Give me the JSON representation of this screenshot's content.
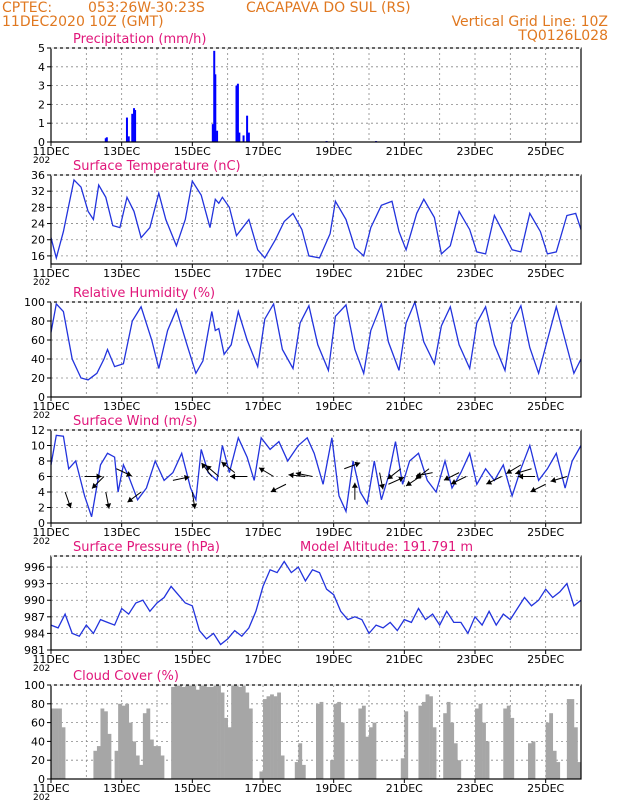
{
  "header": {
    "line1_left": "CPTEC:",
    "line1_coords": "053:26W-30:23S",
    "line1_station": "CACAPAVA DO SUL (RS)",
    "line2_date": "11DEC2020 10Z (GMT)",
    "line2_grid": "Vertical Grid Line: 10Z",
    "line3_code": "TQ0126L028",
    "header_color": "#e07820",
    "title_color": "#e0167a"
  },
  "x_ticks": [
    "11DEC",
    "13DEC",
    "15DEC",
    "17DEC",
    "19DEC",
    "21DEC",
    "23DEC",
    "25DEC"
  ],
  "year_fragment": "202",
  "x_range_days": [
    11,
    26
  ],
  "chart_data": [
    {
      "type": "bar",
      "title": "Precipitation (mm/h)",
      "ylim": [
        0,
        5
      ],
      "yticks": [
        "0",
        "1",
        "2",
        "3",
        "4",
        "5"
      ],
      "color": "#0000ff",
      "points": [
        {
          "x": 12.55,
          "y": 0.2
        },
        {
          "x": 12.58,
          "y": 0.25
        },
        {
          "x": 13.15,
          "y": 1.3
        },
        {
          "x": 13.2,
          "y": 0.3
        },
        {
          "x": 13.3,
          "y": 1.5
        },
        {
          "x": 13.35,
          "y": 1.8
        },
        {
          "x": 13.38,
          "y": 1.7
        },
        {
          "x": 15.58,
          "y": 0.95
        },
        {
          "x": 15.62,
          "y": 4.85
        },
        {
          "x": 15.65,
          "y": 3.6
        },
        {
          "x": 15.7,
          "y": 0.6
        },
        {
          "x": 16.25,
          "y": 3.0
        },
        {
          "x": 16.29,
          "y": 3.1
        },
        {
          "x": 16.33,
          "y": 0.5
        },
        {
          "x": 16.45,
          "y": 0.35
        },
        {
          "x": 16.55,
          "y": 1.4
        },
        {
          "x": 16.6,
          "y": 0.5
        },
        {
          "x": 18.8,
          "y": 0.05
        },
        {
          "x": 20.2,
          "y": 0.05
        }
      ]
    },
    {
      "type": "line",
      "title": "Surface Temperature (nC)",
      "ylim": [
        14,
        36
      ],
      "yticks": [
        "16",
        "20",
        "24",
        "28",
        "32",
        "36"
      ],
      "color": "#2233dd",
      "x": [
        11.0,
        11.15,
        11.35,
        11.65,
        11.85,
        12.05,
        12.2,
        12.35,
        12.55,
        12.75,
        12.95,
        13.15,
        13.35,
        13.55,
        13.8,
        14.05,
        14.25,
        14.55,
        14.8,
        15.0,
        15.25,
        15.5,
        15.65,
        15.75,
        15.85,
        16.05,
        16.25,
        16.6,
        16.85,
        17.05,
        17.35,
        17.6,
        17.85,
        18.1,
        18.3,
        18.6,
        18.9,
        19.05,
        19.35,
        19.6,
        19.85,
        20.05,
        20.35,
        20.65,
        20.85,
        21.05,
        21.35,
        21.55,
        21.85,
        22.05,
        22.3,
        22.55,
        22.85,
        23.05,
        23.3,
        23.55,
        23.85,
        24.05,
        24.3,
        24.55,
        24.85,
        25.05,
        25.3,
        25.6,
        25.85,
        26.0
      ],
      "y": [
        20.5,
        15.5,
        22,
        34.8,
        33,
        27,
        25,
        33.5,
        30.5,
        23.5,
        23,
        30.5,
        27,
        20.5,
        23,
        31.5,
        25,
        18.5,
        25,
        34.5,
        31,
        23,
        30,
        29,
        30.5,
        28,
        21,
        25,
        17.5,
        15.5,
        20,
        24.5,
        26.5,
        22.5,
        16,
        15.5,
        21.5,
        29.5,
        25,
        18,
        16,
        23,
        28.5,
        29.5,
        22,
        17.5,
        26.5,
        30,
        25.5,
        16.5,
        18.5,
        27,
        22.5,
        17,
        16.5,
        26,
        21,
        17.5,
        17,
        26.5,
        22,
        16.5,
        17,
        26,
        26.5,
        22.5
      ]
    },
    {
      "type": "line",
      "title": "Relative Humidity (%)",
      "ylim": [
        0,
        100
      ],
      "yticks": [
        "0",
        "20",
        "40",
        "60",
        "80",
        "100"
      ],
      "color": "#2233dd",
      "x": [
        11.0,
        11.15,
        11.35,
        11.6,
        11.85,
        12.05,
        12.3,
        12.5,
        12.6,
        12.8,
        13.05,
        13.3,
        13.55,
        13.85,
        14.05,
        14.3,
        14.55,
        14.85,
        15.1,
        15.3,
        15.55,
        15.65,
        15.75,
        15.9,
        16.1,
        16.3,
        16.55,
        16.85,
        17.05,
        17.3,
        17.55,
        17.85,
        18.05,
        18.3,
        18.55,
        18.85,
        19.05,
        19.35,
        19.6,
        19.85,
        20.05,
        20.35,
        20.55,
        20.85,
        21.05,
        21.3,
        21.55,
        21.85,
        22.05,
        22.3,
        22.55,
        22.85,
        23.05,
        23.3,
        23.55,
        23.85,
        24.05,
        24.3,
        24.55,
        24.8,
        25.05,
        25.3,
        25.55,
        25.8,
        26.0
      ],
      "y": [
        68,
        98,
        90,
        40,
        20,
        18,
        25,
        40,
        50,
        32,
        35,
        80,
        95,
        60,
        30,
        70,
        92,
        55,
        25,
        38,
        90,
        70,
        72,
        45,
        55,
        90,
        60,
        32,
        82,
        98,
        50,
        30,
        78,
        96,
        55,
        28,
        85,
        97,
        50,
        25,
        70,
        98,
        58,
        28,
        78,
        100,
        58,
        35,
        75,
        95,
        55,
        30,
        78,
        95,
        55,
        28,
        78,
        96,
        52,
        25,
        60,
        95,
        60,
        25,
        40
      ]
    },
    {
      "type": "line",
      "title": "Surface Wind (m/s)",
      "ylim": [
        0,
        12
      ],
      "yticks": [
        "0",
        "2",
        "4",
        "6",
        "8",
        "10",
        "12"
      ],
      "color": "#2233dd",
      "arrow_color": "#000000",
      "x": [
        11.0,
        11.15,
        11.35,
        11.5,
        11.7,
        11.95,
        12.15,
        12.4,
        12.6,
        12.8,
        12.9,
        13.05,
        13.2,
        13.45,
        13.7,
        13.95,
        14.2,
        14.45,
        14.7,
        14.95,
        15.1,
        15.25,
        15.45,
        15.7,
        15.85,
        16.05,
        16.3,
        16.55,
        16.75,
        16.95,
        17.2,
        17.45,
        17.7,
        18.0,
        18.25,
        18.45,
        18.7,
        18.95,
        19.15,
        19.35,
        19.55,
        19.75,
        19.95,
        20.15,
        20.35,
        20.55,
        20.75,
        20.95,
        21.15,
        21.4,
        21.65,
        21.9,
        22.15,
        22.35,
        22.6,
        22.85,
        23.05,
        23.3,
        23.55,
        23.8,
        24.05,
        24.3,
        24.55,
        24.8,
        25.05,
        25.3,
        25.55,
        25.75,
        26.0
      ],
      "y": [
        7.5,
        11.3,
        11.2,
        7,
        8,
        3.5,
        0.8,
        7.5,
        9,
        8.5,
        4,
        7.5,
        6,
        3,
        4.5,
        8,
        5.5,
        6.5,
        9,
        4.5,
        3,
        9.5,
        6.5,
        5.5,
        10,
        6.5,
        11,
        8.5,
        5.5,
        11,
        9.5,
        10.5,
        8,
        10,
        11,
        9,
        5,
        11,
        3.5,
        1.5,
        8,
        4,
        2.5,
        8,
        3,
        6,
        10.5,
        5,
        8,
        9,
        5.5,
        4,
        8,
        4.5,
        6.5,
        9,
        5,
        7,
        5.5,
        7.5,
        3.5,
        7,
        10,
        5.5,
        7,
        9,
        4.5,
        8,
        10
      ]
    },
    {
      "type": "line",
      "title": "Surface Pressure (hPa)",
      "subtitle": "Model Altitude: 191.791 m",
      "ylim": [
        981,
        998
      ],
      "yticks": [
        "981",
        "984",
        "987",
        "990",
        "993",
        "996"
      ],
      "color": "#2233dd",
      "x": [
        11.0,
        11.2,
        11.4,
        11.6,
        11.8,
        12.0,
        12.2,
        12.4,
        12.6,
        12.8,
        13.0,
        13.2,
        13.4,
        13.6,
        13.8,
        14.0,
        14.2,
        14.4,
        14.6,
        14.8,
        15.0,
        15.2,
        15.4,
        15.6,
        15.8,
        16.0,
        16.2,
        16.4,
        16.6,
        16.8,
        17.0,
        17.2,
        17.4,
        17.6,
        17.8,
        18.0,
        18.2,
        18.4,
        18.6,
        18.8,
        19.0,
        19.2,
        19.4,
        19.6,
        19.8,
        20.0,
        20.2,
        20.4,
        20.6,
        20.8,
        21.0,
        21.2,
        21.4,
        21.6,
        21.8,
        22.0,
        22.2,
        22.4,
        22.6,
        22.8,
        23.0,
        23.2,
        23.4,
        23.6,
        23.8,
        24.0,
        24.2,
        24.4,
        24.6,
        24.8,
        25.0,
        25.2,
        25.4,
        25.6,
        25.8,
        26.0
      ],
      "y": [
        985.5,
        985,
        987.5,
        984,
        983.5,
        985.5,
        984,
        986.5,
        986,
        985.5,
        988.5,
        987.5,
        989.5,
        990,
        988,
        989.5,
        990.5,
        992.5,
        991,
        989.5,
        989,
        984.5,
        983,
        984,
        982,
        983,
        984.5,
        983.5,
        985,
        988,
        992.5,
        995.5,
        995,
        997,
        995,
        996,
        993.5,
        995.5,
        995,
        992,
        991,
        988,
        986.5,
        987,
        986.5,
        984,
        985.5,
        985,
        986,
        984.5,
        986.5,
        986,
        988.5,
        986.5,
        987.5,
        985.5,
        988,
        986,
        986,
        984,
        987,
        985.5,
        988,
        985.5,
        987.5,
        986.5,
        988.5,
        990.5,
        989,
        990,
        992,
        990.5,
        991.5,
        993,
        989,
        990
      ]
    },
    {
      "type": "bar",
      "title": "Cloud Cover (%)",
      "ylim": [
        0,
        100
      ],
      "yticks": [
        "0",
        "20",
        "40",
        "60",
        "80",
        "100"
      ],
      "color": "#a6a6a6",
      "x": [
        11.0,
        11.1,
        11.2,
        11.3,
        11.4,
        11.5,
        11.6,
        11.7,
        11.8,
        11.9,
        12.0,
        12.1,
        12.2,
        12.3,
        12.4,
        12.5,
        12.6,
        12.7,
        12.8,
        12.9,
        13.0,
        13.1,
        13.2,
        13.3,
        13.4,
        13.5,
        13.6,
        13.7,
        13.8,
        13.9,
        14.0,
        14.1,
        14.2,
        14.3,
        14.4,
        14.5,
        14.6,
        14.7,
        14.8,
        14.9,
        15.0,
        15.1,
        15.2,
        15.3,
        15.4,
        15.5,
        15.6,
        15.7,
        15.8,
        15.9,
        16.0,
        16.1,
        16.2,
        16.3,
        16.4,
        16.5,
        16.6,
        16.7,
        16.8,
        16.9,
        17.0,
        17.1,
        17.2,
        17.3,
        17.4,
        17.5,
        17.6,
        17.7,
        17.8,
        17.9,
        18.0,
        18.1,
        18.2,
        18.3,
        18.4,
        18.5,
        18.6,
        18.7,
        18.8,
        18.9,
        19.0,
        19.1,
        19.2,
        19.3,
        19.4,
        19.5,
        19.6,
        19.7,
        19.8,
        19.9,
        20.0,
        20.1,
        20.2,
        20.3,
        20.4,
        20.5,
        20.6,
        20.7,
        20.8,
        20.9,
        21.0,
        21.1,
        21.2,
        21.3,
        21.4,
        21.5,
        21.6,
        21.7,
        21.8,
        21.9,
        22.0,
        22.1,
        22.2,
        22.3,
        22.4,
        22.5,
        22.6,
        22.7,
        22.8,
        22.9,
        23.0,
        23.1,
        23.2,
        23.3,
        23.4,
        23.5,
        23.6,
        23.7,
        23.8,
        23.9,
        24.0,
        24.1,
        24.2,
        24.3,
        24.4,
        24.5,
        24.6,
        24.7,
        24.8,
        24.9,
        25.0,
        25.1,
        25.2,
        25.3,
        25.4,
        25.5,
        25.6,
        25.7,
        25.8,
        25.9
      ],
      "y": [
        75,
        75,
        75,
        55,
        0,
        0,
        0,
        0,
        0,
        0,
        0,
        0,
        30,
        35,
        75,
        72,
        48,
        0,
        30,
        80,
        78,
        80,
        60,
        40,
        25,
        15,
        70,
        75,
        42,
        35,
        35,
        25,
        0,
        0,
        98,
        100,
        100,
        98,
        100,
        100,
        100,
        95,
        100,
        100,
        98,
        98,
        100,
        100,
        92,
        65,
        55,
        100,
        100,
        98,
        100,
        92,
        75,
        0,
        0,
        8,
        85,
        88,
        90,
        88,
        92,
        25,
        0,
        0,
        0,
        18,
        38,
        15,
        0,
        0,
        0,
        80,
        82,
        0,
        0,
        20,
        80,
        82,
        60,
        0,
        0,
        0,
        0,
        75,
        78,
        45,
        55,
        60,
        0,
        0,
        0,
        0,
        0,
        0,
        0,
        22,
        72,
        0,
        0,
        0,
        78,
        82,
        90,
        88,
        55,
        0,
        0,
        70,
        82,
        60,
        38,
        20,
        0,
        0,
        0,
        0,
        75,
        80,
        60,
        40,
        0,
        0,
        0,
        0,
        75,
        78,
        65,
        0,
        0,
        0,
        0,
        38,
        40,
        0,
        0,
        0,
        60,
        70,
        30,
        18,
        0,
        0,
        85,
        85,
        55,
        18
      ]
    }
  ],
  "wind_arrows": [
    {
      "day": 11.4,
      "speed": 4,
      "dx": 0.35,
      "dy": 1.0
    },
    {
      "day": 11.95,
      "speed": 6,
      "dx": 0.9,
      "dy": 0.0
    },
    {
      "day": 12.5,
      "speed": 6,
      "dx": -0.6,
      "dy": 0.6
    },
    {
      "day": 12.55,
      "speed": 4,
      "dx": 0.2,
      "dy": 1.0
    },
    {
      "day": 12.85,
      "speed": 7,
      "dx": 0.85,
      "dy": 0.4
    },
    {
      "day": 13.55,
      "speed": 4,
      "dx": -0.8,
      "dy": 0.6
    },
    {
      "day": 14.45,
      "speed": 5.5,
      "dx": 0.95,
      "dy": -0.2
    },
    {
      "day": 15.0,
      "speed": 4,
      "dx": 0.15,
      "dy": 1.0
    },
    {
      "day": 15.55,
      "speed": 6,
      "dx": -0.6,
      "dy": -0.8
    },
    {
      "day": 15.75,
      "speed": 6,
      "dx": -0.7,
      "dy": -0.6
    },
    {
      "day": 16.2,
      "speed": 6.5,
      "dx": -1.0,
      "dy": -0.8
    },
    {
      "day": 16.55,
      "speed": 6,
      "dx": -1.0,
      "dy": 0.0
    },
    {
      "day": 17.3,
      "speed": 6,
      "dx": -1.0,
      "dy": -0.6
    },
    {
      "day": 17.65,
      "speed": 5,
      "dx": -1.0,
      "dy": 0.5
    },
    {
      "day": 18.2,
      "speed": 6,
      "dx": -1.0,
      "dy": -0.1
    },
    {
      "day": 18.4,
      "speed": 6,
      "dx": -1.0,
      "dy": -0.2
    },
    {
      "day": 19.3,
      "speed": 7,
      "dx": 0.8,
      "dy": -0.3
    },
    {
      "day": 19.6,
      "speed": 3,
      "dx": 0.0,
      "dy": -1.0
    },
    {
      "day": 20.3,
      "speed": 6.5,
      "dx": 0.2,
      "dy": 1.0
    },
    {
      "day": 20.55,
      "speed": 5,
      "dx": 0.9,
      "dy": -0.4
    },
    {
      "day": 20.9,
      "speed": 7,
      "dx": -0.9,
      "dy": 0.7
    },
    {
      "day": 21.45,
      "speed": 6,
      "dx": -0.9,
      "dy": 0.6
    },
    {
      "day": 21.7,
      "speed": 7,
      "dx": -0.8,
      "dy": 0.6
    },
    {
      "day": 21.8,
      "speed": 6.5,
      "dx": -1.0,
      "dy": 0.2
    },
    {
      "day": 22.55,
      "speed": 6.5,
      "dx": -1.0,
      "dy": 0.5
    },
    {
      "day": 22.75,
      "speed": 6,
      "dx": -1.0,
      "dy": 0.5
    },
    {
      "day": 23.75,
      "speed": 6,
      "dx": -1.0,
      "dy": 0.5
    },
    {
      "day": 24.3,
      "speed": 7.5,
      "dx": -1.0,
      "dy": 0.6
    },
    {
      "day": 24.6,
      "speed": 7,
      "dx": -1.0,
      "dy": 0.3
    },
    {
      "day": 24.7,
      "speed": 6,
      "dx": -1.0,
      "dy": 0.0
    },
    {
      "day": 25.0,
      "speed": 5,
      "dx": -1.0,
      "dy": 0.5
    },
    {
      "day": 25.6,
      "speed": 6,
      "dx": -1.0,
      "dy": 0.3
    }
  ]
}
